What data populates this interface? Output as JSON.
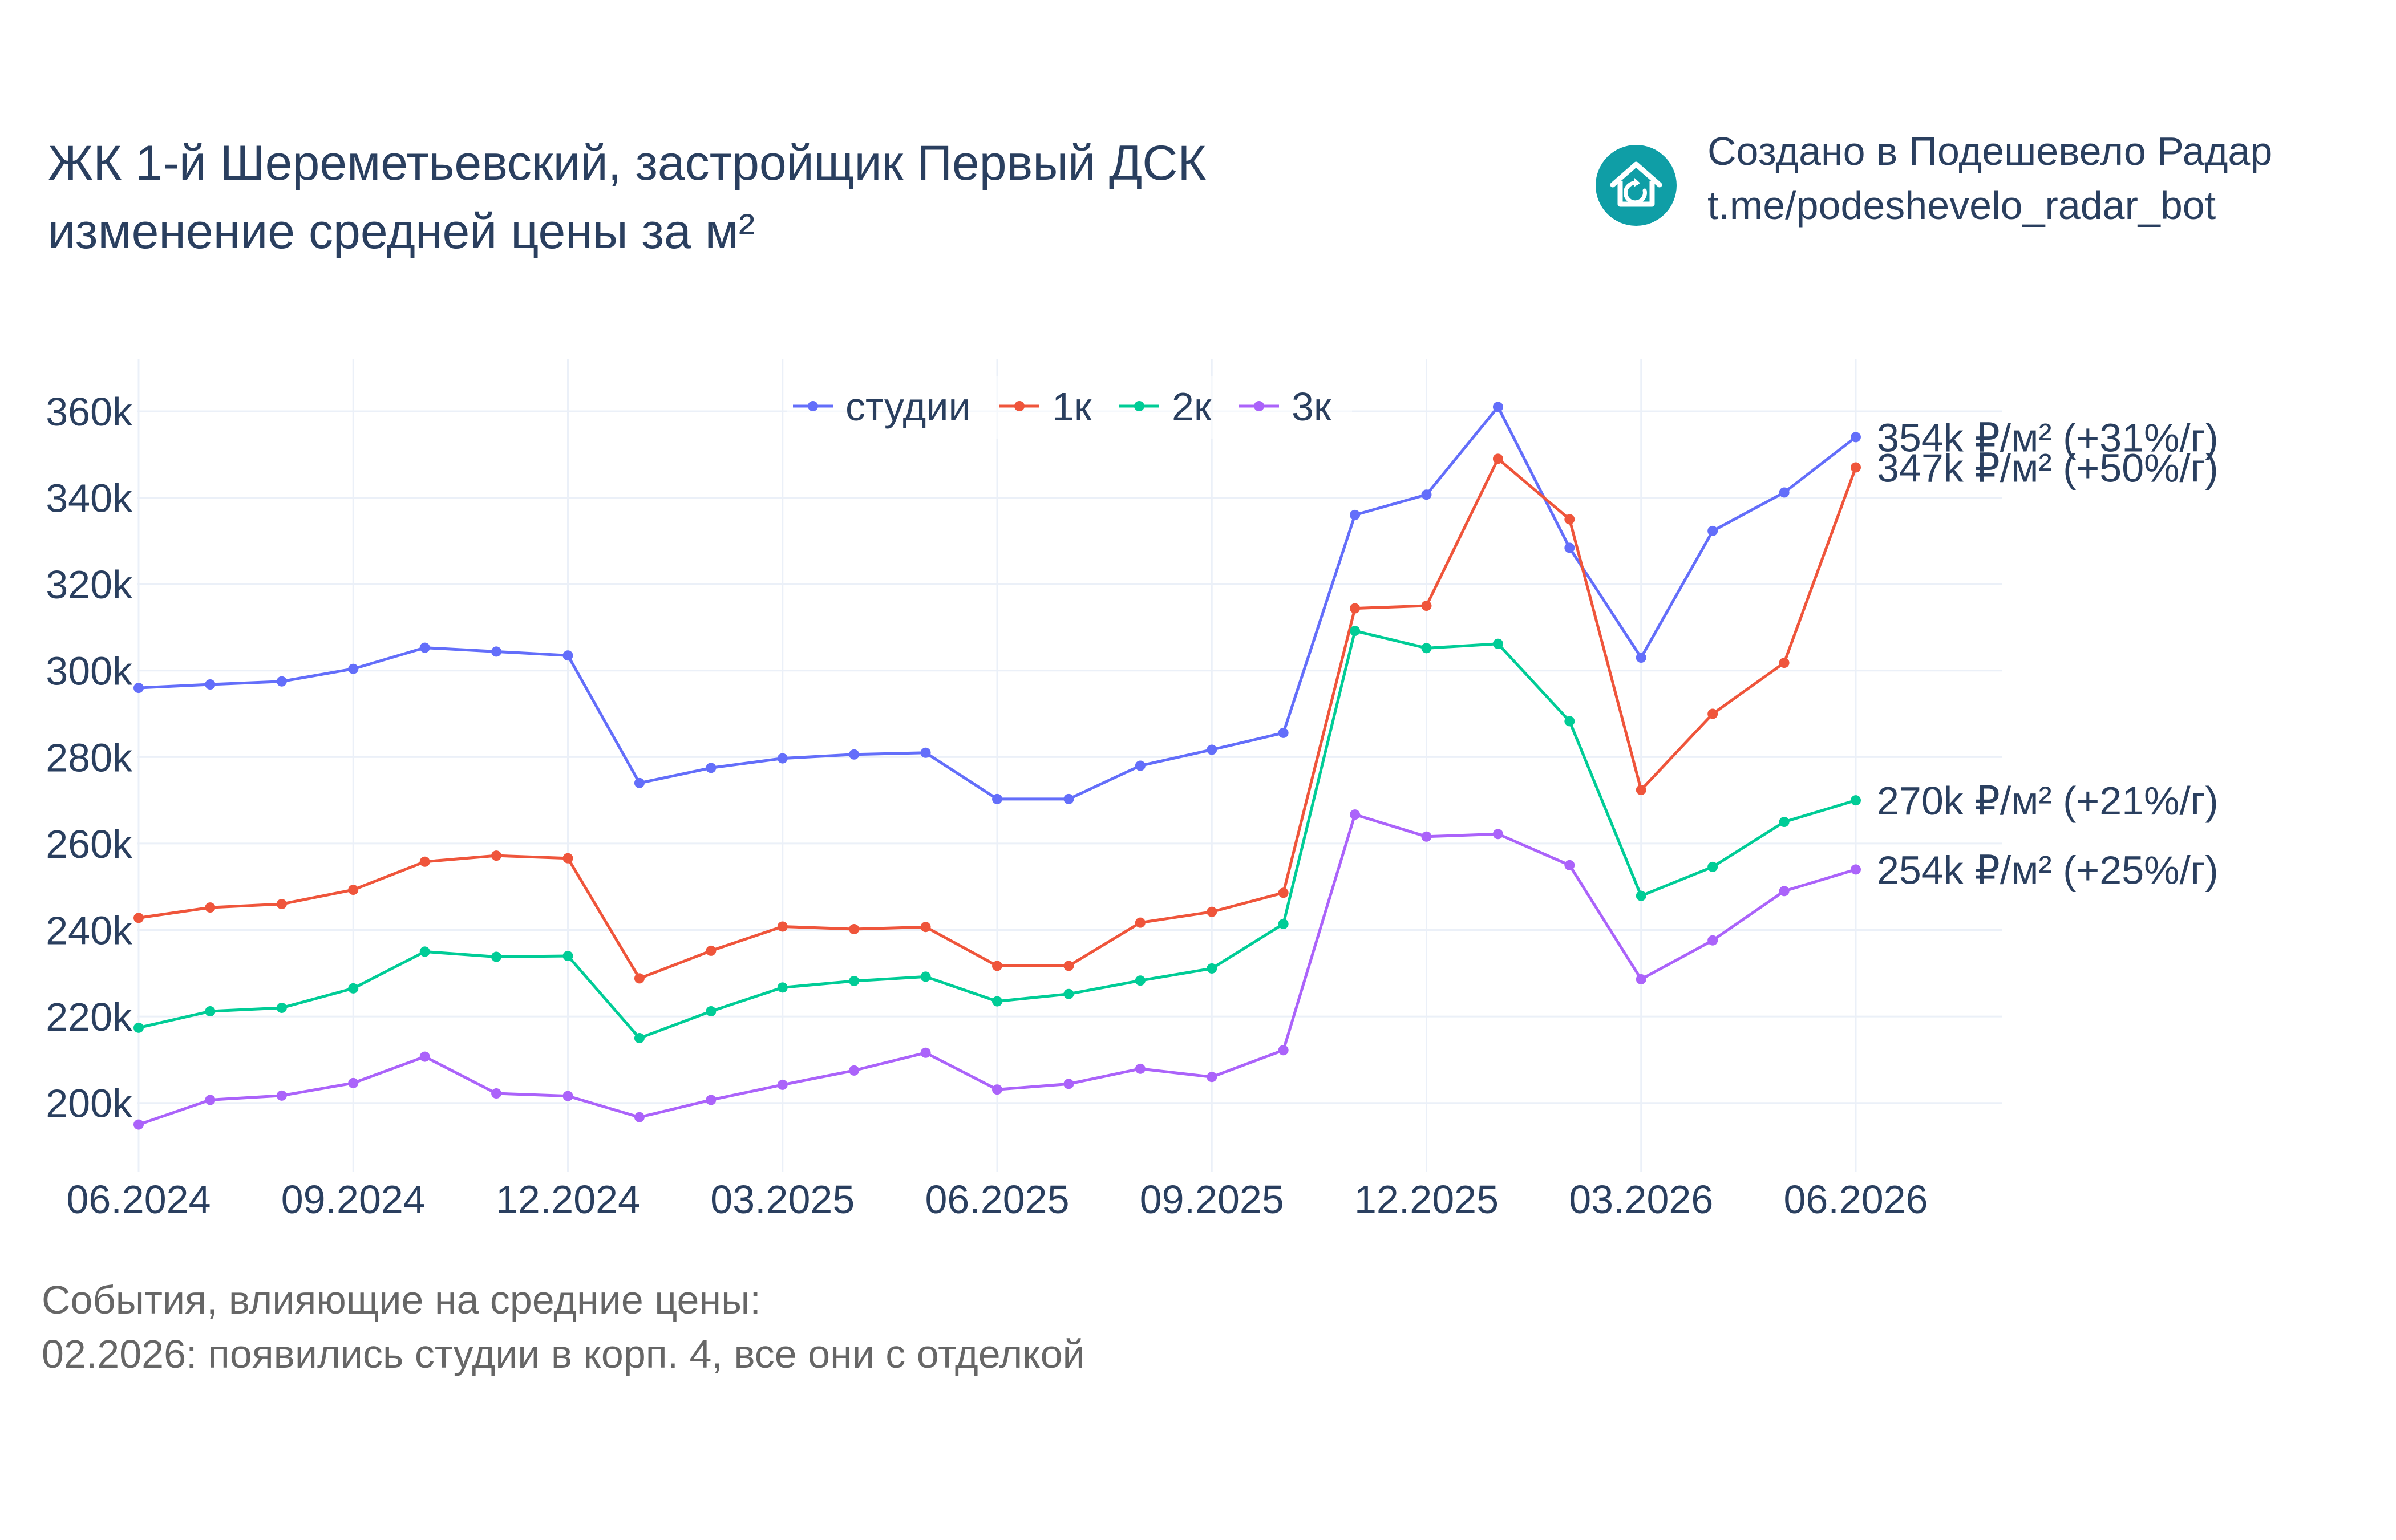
{
  "header": {
    "title_line1": "ЖК 1-й Шереметьевский, застройщик Первый ДСК",
    "title_line2": "изменение средней цены за м²"
  },
  "brand": {
    "icon": "house-refresh-icon",
    "line1": "Создано в Подешевело Радар",
    "line2": "t.me/podeshevelo_radar_bot",
    "color": "#0f9ea6"
  },
  "events": {
    "heading": "События, влияющие на средние цены:",
    "items": [
      "02.2026: появились студии в корп. 4, все они с отделкой"
    ]
  },
  "chart_data": {
    "type": "line",
    "x": [
      "06.2024",
      "07.2024",
      "08.2024",
      "09.2024",
      "10.2024",
      "11.2024",
      "12.2024",
      "01.2025",
      "02.2025",
      "03.2025",
      "04.2025",
      "05.2025",
      "06.2025",
      "07.2025",
      "08.2025",
      "09.2025",
      "10.2025",
      "11.2025",
      "12.2025",
      "01.2026",
      "02.2026",
      "03.2026",
      "04.2026",
      "05.2026",
      "06.2026"
    ],
    "x_tick_labels": [
      "06.2024",
      "09.2024",
      "12.2024",
      "03.2025",
      "06.2025",
      "09.2025",
      "12.2025",
      "03.2026",
      "06.2026"
    ],
    "y_tick_values": [
      200000,
      220000,
      240000,
      260000,
      280000,
      300000,
      320000,
      340000,
      360000
    ],
    "y_tick_labels": [
      "200k",
      "220k",
      "240k",
      "260k",
      "280k",
      "300k",
      "320k",
      "340k",
      "360k"
    ],
    "ylim": [
      184000,
      372000
    ],
    "grid": true,
    "legend_position": "top-center",
    "series": [
      {
        "name": "студии",
        "color": "#636efa",
        "values": [
          296000,
          296800,
          297500,
          300400,
          305300,
          304400,
          303500,
          274000,
          277500,
          279700,
          280600,
          281000,
          270300,
          270300,
          278000,
          281700,
          285600,
          336000,
          340700,
          361000,
          328400,
          303000,
          332300,
          341200,
          354000
        ],
        "end_label": "354k ₽/м² (+31%/г)"
      },
      {
        "name": "1к",
        "color": "#ef553b",
        "values": [
          242800,
          245200,
          246000,
          249300,
          255800,
          257200,
          256600,
          228800,
          235200,
          240800,
          240200,
          240700,
          231700,
          231700,
          241700,
          244200,
          248600,
          314400,
          315000,
          349000,
          335000,
          272400,
          290000,
          301800,
          347000
        ],
        "end_label": "347k ₽/м² (+50%/г)"
      },
      {
        "name": "2к",
        "color": "#00cc96",
        "values": [
          217400,
          221200,
          222000,
          226500,
          235000,
          233800,
          234000,
          215000,
          221200,
          226700,
          228200,
          229200,
          223500,
          225200,
          228300,
          231100,
          241400,
          309200,
          305200,
          306200,
          288300,
          247900,
          254600,
          265000,
          270000
        ],
        "end_label": "270k ₽/м² (+21%/г)"
      },
      {
        "name": "3к",
        "color": "#ab63fa",
        "values": [
          195000,
          200700,
          201700,
          204600,
          210700,
          202200,
          201600,
          196700,
          200700,
          204200,
          207500,
          211600,
          203100,
          204400,
          207900,
          206000,
          212200,
          266700,
          261600,
          262200,
          255000,
          228600,
          237600,
          249000,
          254000
        ],
        "end_label": "254k ₽/м² (+25%/г)"
      }
    ]
  }
}
